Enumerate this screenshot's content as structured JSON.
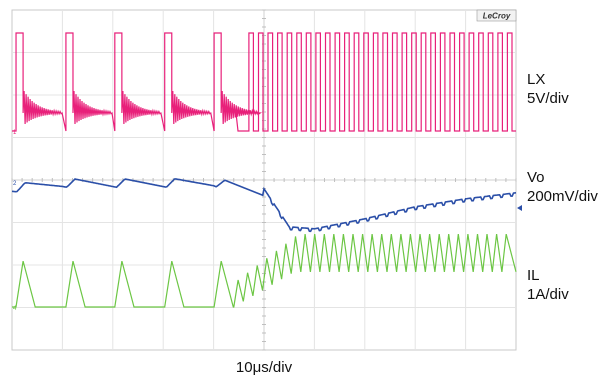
{
  "chart_data": {
    "type": "line",
    "brand": "LeCroy",
    "time_per_div": "10μs/div",
    "divisions": {
      "horizontal": 10,
      "vertical": 8
    },
    "load_step_time_us": 50,
    "x_range_us": [
      0,
      100
    ],
    "x_unit": "μs",
    "series": [
      {
        "name": "LX",
        "scale": "5V/div",
        "color": "#e8207a",
        "marker": "1",
        "description_values": {
          "low_V": 0,
          "high_V": 5,
          "pulse_times_us_before_step": [
            0.8,
            10.7,
            20.4,
            30.3,
            40.1
          ],
          "pulse_width_us": 1.4,
          "ringing_after_pulse": true,
          "switching_period_after_step_us": 1.9,
          "pulse_width_after_step_us": 0.9
        }
      },
      {
        "name": "Vo",
        "scale": "200mV/div",
        "color": "#2b4fa8",
        "marker": "2",
        "description_values": {
          "baseline_mV": 0,
          "sawtooth_peak_before_step_mV": 20,
          "undershoot_min_mV": -248,
          "undershoot_time_us": 56,
          "final_level_mV": -40,
          "x_us": [
            0,
            10,
            20,
            30,
            40,
            50,
            55,
            60,
            70,
            80,
            90,
            100
          ],
          "y_mV": [
            -20,
            5,
            5,
            5,
            10,
            -40,
            -230,
            -240,
            -190,
            -130,
            -90,
            -60
          ]
        }
      },
      {
        "name": "IL",
        "scale": "1A/div",
        "color": "#6cc644",
        "marker": "4",
        "description_values": {
          "floor_A": 0,
          "peak_before_step_A": 0.85,
          "peak_after_step_A": 1.35,
          "valley_after_step_A": 0.65,
          "ramp_up_start_us": 44,
          "ramp_up_end_us": 56
        }
      }
    ],
    "grid": true
  }
}
